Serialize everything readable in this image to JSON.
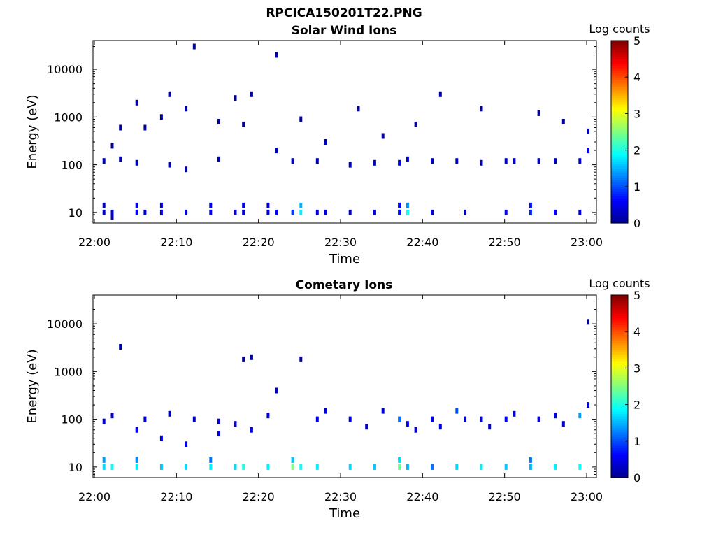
{
  "figure": {
    "title": "RPCICA150201T22.PNG"
  },
  "chart_data": [
    {
      "type": "heatmap",
      "title": "Solar Wind Ions",
      "xlabel": "Time",
      "ylabel": "Energy (eV)",
      "x_ticks": [
        "22:00",
        "22:10",
        "22:20",
        "22:30",
        "22:40",
        "22:50",
        "23:00"
      ],
      "y_ticks": [
        "10",
        "100",
        "1000",
        "10000"
      ],
      "y_scale": "log",
      "x_range": [
        "22:00",
        "23:00"
      ],
      "y_range": [
        6,
        40000
      ],
      "colorbar": {
        "label": "Log counts",
        "ticks": [
          "0",
          "1",
          "2",
          "3",
          "4",
          "5"
        ],
        "range": [
          0,
          5
        ]
      },
      "cells": [
        {
          "t": "22:01",
          "e": 10,
          "c": 0.3
        },
        {
          "t": "22:01",
          "e": 14,
          "c": 0.2
        },
        {
          "t": "22:01",
          "e": 120,
          "c": 0.2
        },
        {
          "t": "22:02",
          "e": 10,
          "c": 0.4
        },
        {
          "t": "22:02",
          "e": 8,
          "c": 0.3
        },
        {
          "t": "22:02",
          "e": 250,
          "c": 0.1
        },
        {
          "t": "22:03",
          "e": 130,
          "c": 0.2
        },
        {
          "t": "22:03",
          "e": 600,
          "c": 0.1
        },
        {
          "t": "22:05",
          "e": 10,
          "c": 0.5
        },
        {
          "t": "22:05",
          "e": 14,
          "c": 0.4
        },
        {
          "t": "22:05",
          "e": 110,
          "c": 0.2
        },
        {
          "t": "22:05",
          "e": 2000,
          "c": 0.1
        },
        {
          "t": "22:06",
          "e": 10,
          "c": 0.4
        },
        {
          "t": "22:06",
          "e": 600,
          "c": 0.1
        },
        {
          "t": "22:08",
          "e": 10,
          "c": 0.5
        },
        {
          "t": "22:08",
          "e": 14,
          "c": 0.4
        },
        {
          "t": "22:08",
          "e": 1000,
          "c": 0.1
        },
        {
          "t": "22:09",
          "e": 100,
          "c": 0.2
        },
        {
          "t": "22:09",
          "e": 3000,
          "c": 0.1
        },
        {
          "t": "22:11",
          "e": 10,
          "c": 0.4
        },
        {
          "t": "22:11",
          "e": 80,
          "c": 0.2
        },
        {
          "t": "22:11",
          "e": 1500,
          "c": 0.1
        },
        {
          "t": "22:12",
          "e": 30000,
          "c": 0.1
        },
        {
          "t": "22:14",
          "e": 10,
          "c": 0.5
        },
        {
          "t": "22:14",
          "e": 14,
          "c": 0.4
        },
        {
          "t": "22:15",
          "e": 130,
          "c": 0.2
        },
        {
          "t": "22:15",
          "e": 800,
          "c": 0.1
        },
        {
          "t": "22:17",
          "e": 10,
          "c": 0.5
        },
        {
          "t": "22:17",
          "e": 2500,
          "c": 0.1
        },
        {
          "t": "22:18",
          "e": 10,
          "c": 0.4
        },
        {
          "t": "22:18",
          "e": 14,
          "c": 0.5
        },
        {
          "t": "22:18",
          "e": 700,
          "c": 0.1
        },
        {
          "t": "22:19",
          "e": 3000,
          "c": 0.1
        },
        {
          "t": "22:21",
          "e": 10,
          "c": 0.4
        },
        {
          "t": "22:21",
          "e": 14,
          "c": 0.4
        },
        {
          "t": "22:22",
          "e": 10,
          "c": 0.5
        },
        {
          "t": "22:22",
          "e": 200,
          "c": 0.2
        },
        {
          "t": "22:22",
          "e": 20000,
          "c": 0.1
        },
        {
          "t": "22:24",
          "e": 10,
          "c": 0.9
        },
        {
          "t": "22:24",
          "e": 120,
          "c": 0.3
        },
        {
          "t": "22:25",
          "e": 10,
          "c": 1.8
        },
        {
          "t": "22:25",
          "e": 14,
          "c": 1.5
        },
        {
          "t": "22:25",
          "e": 900,
          "c": 0.1
        },
        {
          "t": "22:27",
          "e": 10,
          "c": 0.5
        },
        {
          "t": "22:27",
          "e": 120,
          "c": 0.2
        },
        {
          "t": "22:28",
          "e": 10,
          "c": 0.4
        },
        {
          "t": "22:28",
          "e": 300,
          "c": 0.2
        },
        {
          "t": "22:31",
          "e": 10,
          "c": 0.4
        },
        {
          "t": "22:31",
          "e": 100,
          "c": 0.2
        },
        {
          "t": "22:32",
          "e": 1500,
          "c": 0.1
        },
        {
          "t": "22:34",
          "e": 10,
          "c": 0.4
        },
        {
          "t": "22:34",
          "e": 110,
          "c": 0.2
        },
        {
          "t": "22:35",
          "e": 400,
          "c": 0.1
        },
        {
          "t": "22:37",
          "e": 10,
          "c": 0.7
        },
        {
          "t": "22:37",
          "e": 14,
          "c": 0.6
        },
        {
          "t": "22:37",
          "e": 110,
          "c": 0.4
        },
        {
          "t": "22:38",
          "e": 10,
          "c": 1.9
        },
        {
          "t": "22:38",
          "e": 14,
          "c": 1.3
        },
        {
          "t": "22:38",
          "e": 130,
          "c": 0.3
        },
        {
          "t": "22:39",
          "e": 700,
          "c": 0.1
        },
        {
          "t": "22:41",
          "e": 10,
          "c": 0.4
        },
        {
          "t": "22:41",
          "e": 120,
          "c": 0.3
        },
        {
          "t": "22:42",
          "e": 3000,
          "c": 0.1
        },
        {
          "t": "22:44",
          "e": 120,
          "c": 0.3
        },
        {
          "t": "22:45",
          "e": 10,
          "c": 0.3
        },
        {
          "t": "22:47",
          "e": 110,
          "c": 0.3
        },
        {
          "t": "22:47",
          "e": 1500,
          "c": 0.1
        },
        {
          "t": "22:50",
          "e": 10,
          "c": 0.5
        },
        {
          "t": "22:50",
          "e": 120,
          "c": 0.3
        },
        {
          "t": "22:51",
          "e": 120,
          "c": 0.3
        },
        {
          "t": "22:53",
          "e": 10,
          "c": 0.8
        },
        {
          "t": "22:53",
          "e": 14,
          "c": 0.7
        },
        {
          "t": "22:54",
          "e": 120,
          "c": 0.3
        },
        {
          "t": "22:54",
          "e": 1200,
          "c": 0.1
        },
        {
          "t": "22:56",
          "e": 10,
          "c": 0.6
        },
        {
          "t": "22:56",
          "e": 120,
          "c": 0.3
        },
        {
          "t": "22:57",
          "e": 800,
          "c": 0.1
        },
        {
          "t": "22:59",
          "e": 10,
          "c": 0.5
        },
        {
          "t": "22:59",
          "e": 120,
          "c": 0.4
        },
        {
          "t": "23:00",
          "e": 200,
          "c": 0.5
        },
        {
          "t": "23:00",
          "e": 500,
          "c": 0.3
        }
      ]
    },
    {
      "type": "heatmap",
      "title": "Cometary Ions",
      "xlabel": "Time",
      "ylabel": "Energy (eV)",
      "x_ticks": [
        "22:00",
        "22:10",
        "22:20",
        "22:30",
        "22:40",
        "22:50",
        "23:00"
      ],
      "y_ticks": [
        "10",
        "100",
        "1000",
        "10000"
      ],
      "y_scale": "log",
      "x_range": [
        "22:00",
        "23:00"
      ],
      "y_range": [
        6,
        40000
      ],
      "colorbar": {
        "label": "Log counts",
        "ticks": [
          "0",
          "1",
          "2",
          "3",
          "4",
          "5"
        ],
        "range": [
          0,
          5
        ]
      },
      "cells": [
        {
          "t": "22:01",
          "e": 10,
          "c": 1.7
        },
        {
          "t": "22:01",
          "e": 14,
          "c": 1.4
        },
        {
          "t": "22:01",
          "e": 90,
          "c": 0.4
        },
        {
          "t": "22:02",
          "e": 10,
          "c": 1.9
        },
        {
          "t": "22:02",
          "e": 120,
          "c": 0.4
        },
        {
          "t": "22:03",
          "e": 3300,
          "c": 0.1
        },
        {
          "t": "22:05",
          "e": 10,
          "c": 1.8
        },
        {
          "t": "22:05",
          "e": 14,
          "c": 1.3
        },
        {
          "t": "22:05",
          "e": 60,
          "c": 0.6
        },
        {
          "t": "22:06",
          "e": 100,
          "c": 0.4
        },
        {
          "t": "22:08",
          "e": 10,
          "c": 1.6
        },
        {
          "t": "22:08",
          "e": 40,
          "c": 0.5
        },
        {
          "t": "22:09",
          "e": 130,
          "c": 0.3
        },
        {
          "t": "22:11",
          "e": 10,
          "c": 1.7
        },
        {
          "t": "22:11",
          "e": 30,
          "c": 0.5
        },
        {
          "t": "22:12",
          "e": 100,
          "c": 0.3
        },
        {
          "t": "22:14",
          "e": 10,
          "c": 1.8
        },
        {
          "t": "22:14",
          "e": 14,
          "c": 1.2
        },
        {
          "t": "22:15",
          "e": 90,
          "c": 0.5
        },
        {
          "t": "22:15",
          "e": 50,
          "c": 0.5
        },
        {
          "t": "22:17",
          "e": 10,
          "c": 1.7
        },
        {
          "t": "22:17",
          "e": 80,
          "c": 0.5
        },
        {
          "t": "22:18",
          "e": 10,
          "c": 2.0
        },
        {
          "t": "22:18",
          "e": 1800,
          "c": 0.1
        },
        {
          "t": "22:19",
          "e": 2000,
          "c": 0.1
        },
        {
          "t": "22:19",
          "e": 60,
          "c": 0.5
        },
        {
          "t": "22:21",
          "e": 10,
          "c": 1.8
        },
        {
          "t": "22:21",
          "e": 120,
          "c": 0.4
        },
        {
          "t": "22:22",
          "e": 400,
          "c": 0.2
        },
        {
          "t": "22:24",
          "e": 10,
          "c": 2.5
        },
        {
          "t": "22:24",
          "e": 14,
          "c": 1.6
        },
        {
          "t": "22:25",
          "e": 10,
          "c": 1.9
        },
        {
          "t": "22:25",
          "e": 1800,
          "c": 0.1
        },
        {
          "t": "22:27",
          "e": 10,
          "c": 1.8
        },
        {
          "t": "22:27",
          "e": 100,
          "c": 0.5
        },
        {
          "t": "22:28",
          "e": 150,
          "c": 0.4
        },
        {
          "t": "22:31",
          "e": 10,
          "c": 1.7
        },
        {
          "t": "22:31",
          "e": 100,
          "c": 0.4
        },
        {
          "t": "22:33",
          "e": 70,
          "c": 0.4
        },
        {
          "t": "22:34",
          "e": 10,
          "c": 1.6
        },
        {
          "t": "22:35",
          "e": 150,
          "c": 0.3
        },
        {
          "t": "22:37",
          "e": 10,
          "c": 2.4
        },
        {
          "t": "22:37",
          "e": 14,
          "c": 1.7
        },
        {
          "t": "22:37",
          "e": 100,
          "c": 1.2
        },
        {
          "t": "22:38",
          "e": 10,
          "c": 1.5
        },
        {
          "t": "22:38",
          "e": 80,
          "c": 0.6
        },
        {
          "t": "22:39",
          "e": 60,
          "c": 0.5
        },
        {
          "t": "22:41",
          "e": 10,
          "c": 1.2
        },
        {
          "t": "22:41",
          "e": 100,
          "c": 0.5
        },
        {
          "t": "22:42",
          "e": 70,
          "c": 0.5
        },
        {
          "t": "22:44",
          "e": 10,
          "c": 1.7
        },
        {
          "t": "22:44",
          "e": 150,
          "c": 1.0
        },
        {
          "t": "22:45",
          "e": 100,
          "c": 0.4
        },
        {
          "t": "22:47",
          "e": 10,
          "c": 1.8
        },
        {
          "t": "22:47",
          "e": 100,
          "c": 0.5
        },
        {
          "t": "22:48",
          "e": 70,
          "c": 0.4
        },
        {
          "t": "22:50",
          "e": 10,
          "c": 1.6
        },
        {
          "t": "22:50",
          "e": 100,
          "c": 0.5
        },
        {
          "t": "22:51",
          "e": 130,
          "c": 0.4
        },
        {
          "t": "22:53",
          "e": 10,
          "c": 1.5
        },
        {
          "t": "22:53",
          "e": 14,
          "c": 1.2
        },
        {
          "t": "22:54",
          "e": 100,
          "c": 0.5
        },
        {
          "t": "22:56",
          "e": 10,
          "c": 1.8
        },
        {
          "t": "22:56",
          "e": 120,
          "c": 0.5
        },
        {
          "t": "22:57",
          "e": 80,
          "c": 0.4
        },
        {
          "t": "22:59",
          "e": 10,
          "c": 1.9
        },
        {
          "t": "22:59",
          "e": 120,
          "c": 1.4
        },
        {
          "t": "23:00",
          "e": 11000,
          "c": 0.1
        },
        {
          "t": "23:00",
          "e": 200,
          "c": 0.4
        }
      ]
    }
  ]
}
